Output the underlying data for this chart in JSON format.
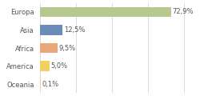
{
  "categories": [
    "Europa",
    "Asia",
    "Africa",
    "America",
    "Oceania"
  ],
  "values": [
    72.9,
    12.5,
    9.5,
    5.0,
    0.1
  ],
  "bar_colors": [
    "#b5c98e",
    "#6b8cba",
    "#e8a87c",
    "#f0d060",
    "#f5c5a0"
  ],
  "labels": [
    "72,9%",
    "12,5%",
    "9,5%",
    "5,0%",
    "0,1%"
  ],
  "background_color": "#ffffff",
  "xlim": [
    0,
    100
  ],
  "bar_height": 0.55,
  "label_fontsize": 6.0,
  "ylabel_fontsize": 6.0,
  "grid_color": "#cccccc",
  "text_color": "#555555"
}
